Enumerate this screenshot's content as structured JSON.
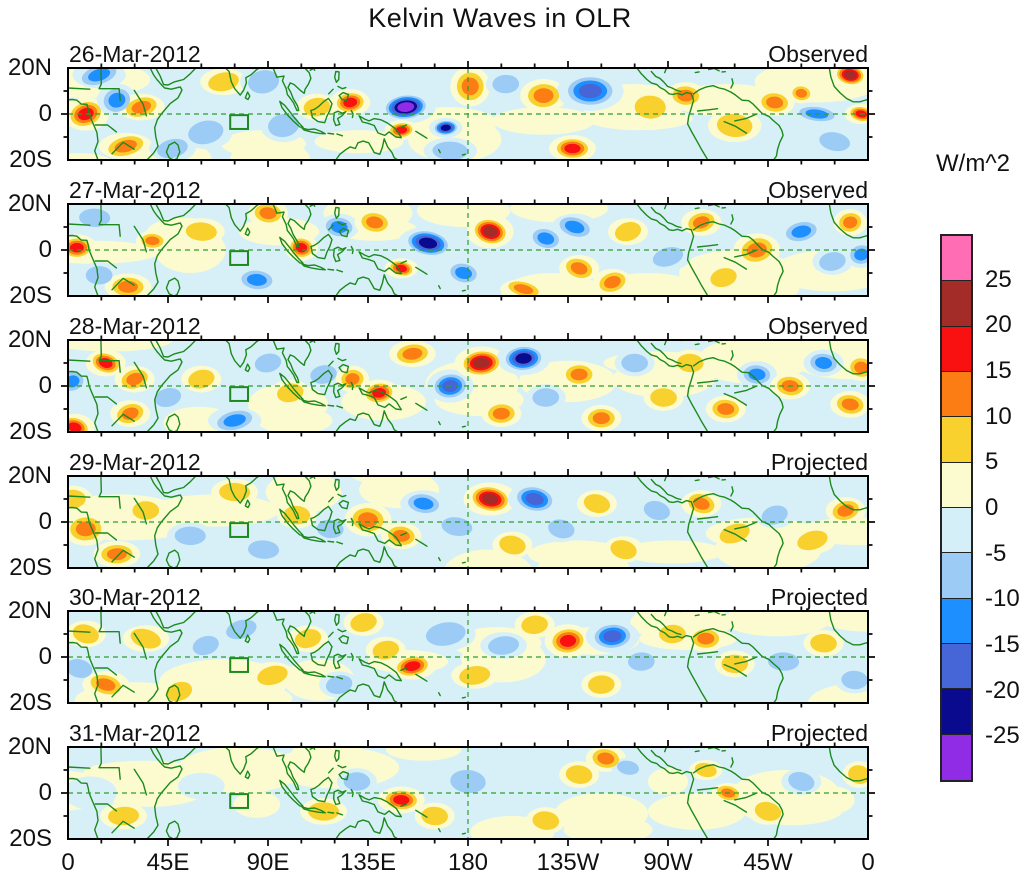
{
  "chart_data": {
    "type": "heatmap",
    "title": "Kelvin Waves in OLR",
    "unit": "W/m^2",
    "x_tick_labels": [
      "0",
      "45E",
      "90E",
      "135E",
      "180",
      "135W",
      "90W",
      "45W",
      "0"
    ],
    "y_tick_labels": [
      "20N",
      "0",
      "20S"
    ],
    "colorbar_tick_labels": [
      "25",
      "20",
      "15",
      "10",
      "5",
      "0",
      "-5",
      "-10",
      "-15",
      "-20",
      "-25"
    ],
    "colorbar_levels": [
      25,
      20,
      15,
      10,
      5,
      0,
      -5,
      -10,
      -15,
      -20,
      -25
    ],
    "colorbar_colors_top_to_bottom": [
      "#FF6EB4",
      "#A32C28",
      "#F91010",
      "#FB7D14",
      "#F8D12E",
      "#FCFBD0",
      "#D5EFF8",
      "#9CCBF5",
      "#1E8FFF",
      "#4666D8",
      "#0A0A8E",
      "#912CE6"
    ],
    "map_colors": {
      "coastline_green": "#1C8A1C",
      "equator_dash_green": "#2E9E2E",
      "ocean_base": "#D7F0F8"
    },
    "anomaly_fields": [
      "lon_deg_east",
      "lat_deg",
      "rx_deg",
      "ry_deg",
      "peak_wm2"
    ],
    "panels": [
      {
        "date": "26-Mar-2012",
        "status": "Observed",
        "anomalies": [
          [
            8,
            0,
            7,
            5,
            16
          ],
          [
            14,
            17,
            8,
            4,
            -13
          ],
          [
            22,
            6,
            6,
            5,
            -14
          ],
          [
            33,
            3,
            7,
            4,
            14
          ],
          [
            26,
            -14,
            8,
            4,
            11
          ],
          [
            47,
            -15,
            7,
            4,
            -9
          ],
          [
            62,
            -8,
            8,
            5,
            -9
          ],
          [
            70,
            14,
            7,
            4,
            7
          ],
          [
            88,
            14,
            7,
            5,
            -8
          ],
          [
            97,
            -5,
            7,
            5,
            -8
          ],
          [
            112,
            3,
            6,
            4,
            8
          ],
          [
            127,
            5,
            6,
            4,
            18
          ],
          [
            152,
            3,
            9,
            5,
            -28
          ],
          [
            150,
            -7,
            5,
            3,
            16
          ],
          [
            170,
            -6,
            5,
            3,
            -21
          ],
          [
            181,
            12,
            6,
            6,
            12
          ],
          [
            197,
            13,
            6,
            4,
            -8
          ],
          [
            214,
            8,
            7,
            5,
            12
          ],
          [
            235,
            10,
            10,
            6,
            -16
          ],
          [
            227,
            -15,
            7,
            4,
            15
          ],
          [
            172,
            -16,
            8,
            4,
            -8
          ],
          [
            262,
            3,
            7,
            5,
            9
          ],
          [
            278,
            8,
            6,
            4,
            13
          ],
          [
            300,
            -5,
            8,
            5,
            6
          ],
          [
            318,
            5,
            6,
            4,
            10
          ],
          [
            337,
            0,
            8,
            3,
            -13
          ],
          [
            330,
            9,
            4,
            3,
            10
          ],
          [
            352,
            17,
            6,
            4,
            22
          ],
          [
            357,
            0,
            5,
            3,
            16
          ],
          [
            345,
            -12,
            7,
            4,
            -8
          ]
        ]
      },
      {
        "date": "27-Mar-2012",
        "status": "Observed",
        "anomalies": [
          [
            4,
            1,
            6,
            4,
            16
          ],
          [
            14,
            -11,
            6,
            4,
            -9
          ],
          [
            27,
            -16,
            7,
            4,
            12
          ],
          [
            12,
            14,
            7,
            4,
            -8
          ],
          [
            38,
            4,
            5,
            3,
            13
          ],
          [
            60,
            8,
            7,
            4,
            8
          ],
          [
            85,
            -13,
            7,
            4,
            -11
          ],
          [
            90,
            16,
            6,
            4,
            13
          ],
          [
            105,
            1,
            5,
            4,
            15
          ],
          [
            122,
            10,
            6,
            4,
            -10
          ],
          [
            138,
            12,
            6,
            4,
            14
          ],
          [
            162,
            3,
            9,
            5,
            -24
          ],
          [
            150,
            -8,
            5,
            3,
            16
          ],
          [
            178,
            -10,
            6,
            4,
            -12
          ],
          [
            190,
            8,
            7,
            5,
            22
          ],
          [
            205,
            -17,
            7,
            3,
            10
          ],
          [
            215,
            5,
            6,
            4,
            -10
          ],
          [
            228,
            10,
            7,
            4,
            -12
          ],
          [
            230,
            -8,
            6,
            4,
            10
          ],
          [
            245,
            -14,
            6,
            4,
            12
          ],
          [
            252,
            8,
            6,
            4,
            8
          ],
          [
            270,
            -3,
            7,
            4,
            -8
          ],
          [
            285,
            12,
            6,
            4,
            10
          ],
          [
            295,
            -12,
            6,
            4,
            9
          ],
          [
            310,
            0,
            7,
            5,
            12
          ],
          [
            330,
            8,
            7,
            4,
            -10
          ],
          [
            344,
            -5,
            6,
            4,
            -9
          ],
          [
            352,
            12,
            5,
            4,
            14
          ],
          [
            357,
            -2,
            5,
            4,
            -14
          ]
        ]
      },
      {
        "date": "28-Mar-2012",
        "status": "Observed",
        "anomalies": [
          [
            3,
            -18,
            6,
            4,
            15
          ],
          [
            17,
            10,
            6,
            4,
            15
          ],
          [
            2,
            2,
            5,
            4,
            -12
          ],
          [
            30,
            3,
            6,
            4,
            12
          ],
          [
            28,
            -12,
            6,
            4,
            10
          ],
          [
            45,
            -5,
            6,
            4,
            -8
          ],
          [
            60,
            3,
            6,
            4,
            7
          ],
          [
            75,
            -15,
            8,
            4,
            -13
          ],
          [
            90,
            10,
            6,
            4,
            -9
          ],
          [
            100,
            -3,
            6,
            4,
            8
          ],
          [
            115,
            5,
            6,
            4,
            -8
          ],
          [
            128,
            3,
            5,
            4,
            13
          ],
          [
            140,
            -3,
            6,
            4,
            16
          ],
          [
            155,
            14,
            7,
            4,
            13
          ],
          [
            172,
            0,
            7,
            5,
            -15
          ],
          [
            186,
            10,
            8,
            5,
            24
          ],
          [
            205,
            12,
            8,
            5,
            -22
          ],
          [
            195,
            -12,
            6,
            4,
            10
          ],
          [
            215,
            -5,
            6,
            4,
            -9
          ],
          [
            230,
            5,
            6,
            4,
            10
          ],
          [
            240,
            -14,
            6,
            4,
            11
          ],
          [
            255,
            10,
            6,
            4,
            -9
          ],
          [
            268,
            -5,
            6,
            4,
            9
          ],
          [
            280,
            10,
            6,
            4,
            8
          ],
          [
            296,
            -10,
            6,
            4,
            10
          ],
          [
            310,
            5,
            6,
            4,
            -12
          ],
          [
            325,
            0,
            6,
            4,
            10
          ],
          [
            340,
            10,
            6,
            4,
            -10
          ],
          [
            352,
            -8,
            6,
            4,
            12
          ],
          [
            357,
            8,
            5,
            4,
            14
          ]
        ]
      },
      {
        "date": "29-Mar-2012",
        "status": "Projected",
        "anomalies": [
          [
            8,
            -3,
            7,
            5,
            14
          ],
          [
            2,
            10,
            6,
            4,
            8
          ],
          [
            22,
            -14,
            7,
            4,
            10
          ],
          [
            35,
            5,
            6,
            4,
            8
          ],
          [
            55,
            -6,
            7,
            4,
            -8
          ],
          [
            75,
            13,
            7,
            4,
            6
          ],
          [
            88,
            -12,
            7,
            4,
            -7
          ],
          [
            103,
            3,
            6,
            4,
            7
          ],
          [
            118,
            -3,
            6,
            4,
            -7
          ],
          [
            135,
            1,
            7,
            5,
            14
          ],
          [
            150,
            -6,
            6,
            4,
            12
          ],
          [
            160,
            8,
            7,
            4,
            -10
          ],
          [
            175,
            -2,
            7,
            4,
            -9
          ],
          [
            190,
            10,
            8,
            5,
            21
          ],
          [
            210,
            10,
            8,
            5,
            -19
          ],
          [
            200,
            -10,
            6,
            4,
            8
          ],
          [
            222,
            -3,
            6,
            4,
            -8
          ],
          [
            238,
            8,
            6,
            4,
            9
          ],
          [
            250,
            -12,
            6,
            4,
            8
          ],
          [
            265,
            5,
            6,
            4,
            -7
          ],
          [
            285,
            8,
            6,
            4,
            10
          ],
          [
            300,
            -5,
            7,
            4,
            7
          ],
          [
            318,
            3,
            6,
            4,
            -9
          ],
          [
            335,
            -8,
            7,
            4,
            6
          ],
          [
            350,
            5,
            6,
            4,
            10
          ]
        ]
      },
      {
        "date": "30-Mar-2012",
        "status": "Projected",
        "anomalies": [
          [
            5,
            -5,
            6,
            4,
            -7
          ],
          [
            17,
            -12,
            7,
            4,
            13
          ],
          [
            8,
            10,
            6,
            4,
            7
          ],
          [
            35,
            8,
            7,
            4,
            6
          ],
          [
            50,
            -15,
            6,
            4,
            7
          ],
          [
            62,
            5,
            6,
            4,
            -6
          ],
          [
            78,
            12,
            7,
            4,
            -7
          ],
          [
            92,
            -8,
            7,
            4,
            6
          ],
          [
            108,
            8,
            6,
            4,
            7
          ],
          [
            122,
            -12,
            6,
            4,
            -6
          ],
          [
            133,
            15,
            6,
            4,
            8
          ],
          [
            143,
            3,
            6,
            4,
            8
          ],
          [
            155,
            -4,
            7,
            4,
            17
          ],
          [
            170,
            10,
            9,
            5,
            -9
          ],
          [
            183,
            -8,
            7,
            4,
            8
          ],
          [
            196,
            5,
            7,
            4,
            -8
          ],
          [
            210,
            14,
            6,
            4,
            7
          ],
          [
            225,
            7,
            7,
            5,
            18
          ],
          [
            245,
            9,
            8,
            5,
            -15
          ],
          [
            240,
            -12,
            6,
            4,
            8
          ],
          [
            258,
            -2,
            6,
            4,
            -7
          ],
          [
            272,
            10,
            6,
            4,
            7
          ],
          [
            287,
            8,
            6,
            4,
            10
          ],
          [
            300,
            -3,
            6,
            4,
            8
          ],
          [
            322,
            -2,
            7,
            4,
            -9
          ],
          [
            340,
            6,
            6,
            4,
            6
          ],
          [
            354,
            -10,
            6,
            4,
            -7
          ]
        ]
      },
      {
        "date": "31-Mar-2012",
        "status": "Projected",
        "anomalies": [
          [
            10,
            0,
            8,
            5,
            -4
          ],
          [
            25,
            -10,
            7,
            4,
            6
          ],
          [
            40,
            8,
            7,
            4,
            4
          ],
          [
            60,
            3,
            7,
            4,
            -4
          ],
          [
            85,
            -5,
            7,
            4,
            4
          ],
          [
            100,
            10,
            6,
            4,
            4
          ],
          [
            115,
            -8,
            7,
            4,
            6
          ],
          [
            130,
            5,
            6,
            4,
            -5
          ],
          [
            150,
            -3,
            7,
            4,
            15
          ],
          [
            165,
            -10,
            6,
            4,
            6
          ],
          [
            180,
            5,
            8,
            5,
            -5
          ],
          [
            200,
            0,
            8,
            5,
            -4
          ],
          [
            215,
            -12,
            6,
            4,
            6
          ],
          [
            230,
            8,
            6,
            4,
            5
          ],
          [
            242,
            15,
            6,
            4,
            12
          ],
          [
            252,
            11,
            5,
            3,
            -7
          ],
          [
            270,
            5,
            6,
            4,
            4
          ],
          [
            287,
            10,
            5,
            3,
            6
          ],
          [
            297,
            0,
            5,
            3,
            12
          ],
          [
            315,
            -8,
            6,
            4,
            5
          ],
          [
            330,
            5,
            6,
            4,
            -5
          ],
          [
            345,
            -3,
            6,
            4,
            4
          ],
          [
            356,
            8,
            5,
            4,
            5
          ]
        ]
      }
    ]
  }
}
